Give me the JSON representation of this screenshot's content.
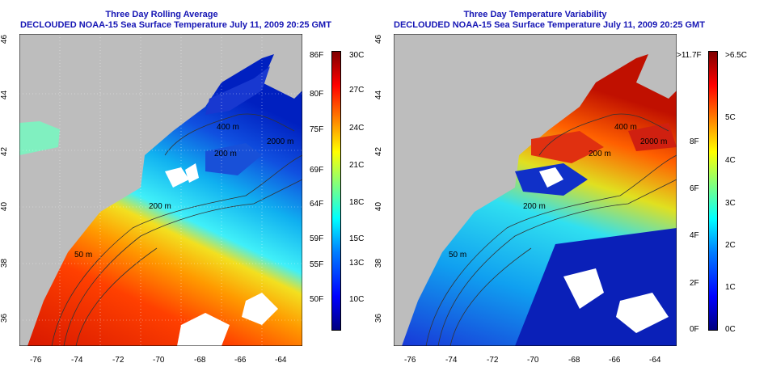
{
  "left_panel": {
    "title_line1": "Three Day Rolling Average",
    "title_line2": "DECLOUDED NOAA-15 Sea Surface Temperature July 11, 2009 20:25 GMT",
    "lat_ticks": [
      "46",
      "44",
      "42",
      "40",
      "38",
      "36"
    ],
    "lon_ticks": [
      "-76",
      "-74",
      "-72",
      "-70",
      "-68",
      "-66",
      "-64"
    ],
    "contour_labels": [
      "400 m",
      "2000 m",
      "200 m",
      "200 m",
      "50 m"
    ],
    "colorbar": {
      "fahrenheit": [
        "86F",
        "80F",
        "75F",
        "69F",
        "64F",
        "59F",
        "55F",
        "50F"
      ],
      "celsius": [
        "30C",
        "27C",
        "24C",
        "21C",
        "18C",
        "15C",
        "13C",
        "10C"
      ]
    }
  },
  "right_panel": {
    "title_line1": "Three Day Temperature Variability",
    "title_line2": "DECLOUDED NOAA-15 Sea Surface Temperature July 11, 2009 20:25 GMT",
    "lat_ticks": [
      "46",
      "44",
      "42",
      "40",
      "38",
      "36"
    ],
    "lon_ticks": [
      "-76",
      "-74",
      "-72",
      "-70",
      "-68",
      "-66",
      "-64"
    ],
    "contour_labels": [
      "400 m",
      "2000 m",
      "200 m",
      "200 m",
      "50 m"
    ],
    "colorbar": {
      "fahrenheit": [
        ">11.7F",
        "8F",
        "6F",
        "4F",
        "2F",
        "0F"
      ],
      "celsius": [
        ">6.5C",
        "5C",
        "4C",
        "3C",
        "2C",
        "1C",
        "0C"
      ]
    }
  },
  "colors": {
    "title": "#1515b4",
    "land": "#bdbdbd",
    "jet": [
      "#00007f",
      "#0000ff",
      "#007fff",
      "#00ffff",
      "#7fff7f",
      "#ffff00",
      "#ff7f00",
      "#ff0000",
      "#7f0000"
    ]
  }
}
